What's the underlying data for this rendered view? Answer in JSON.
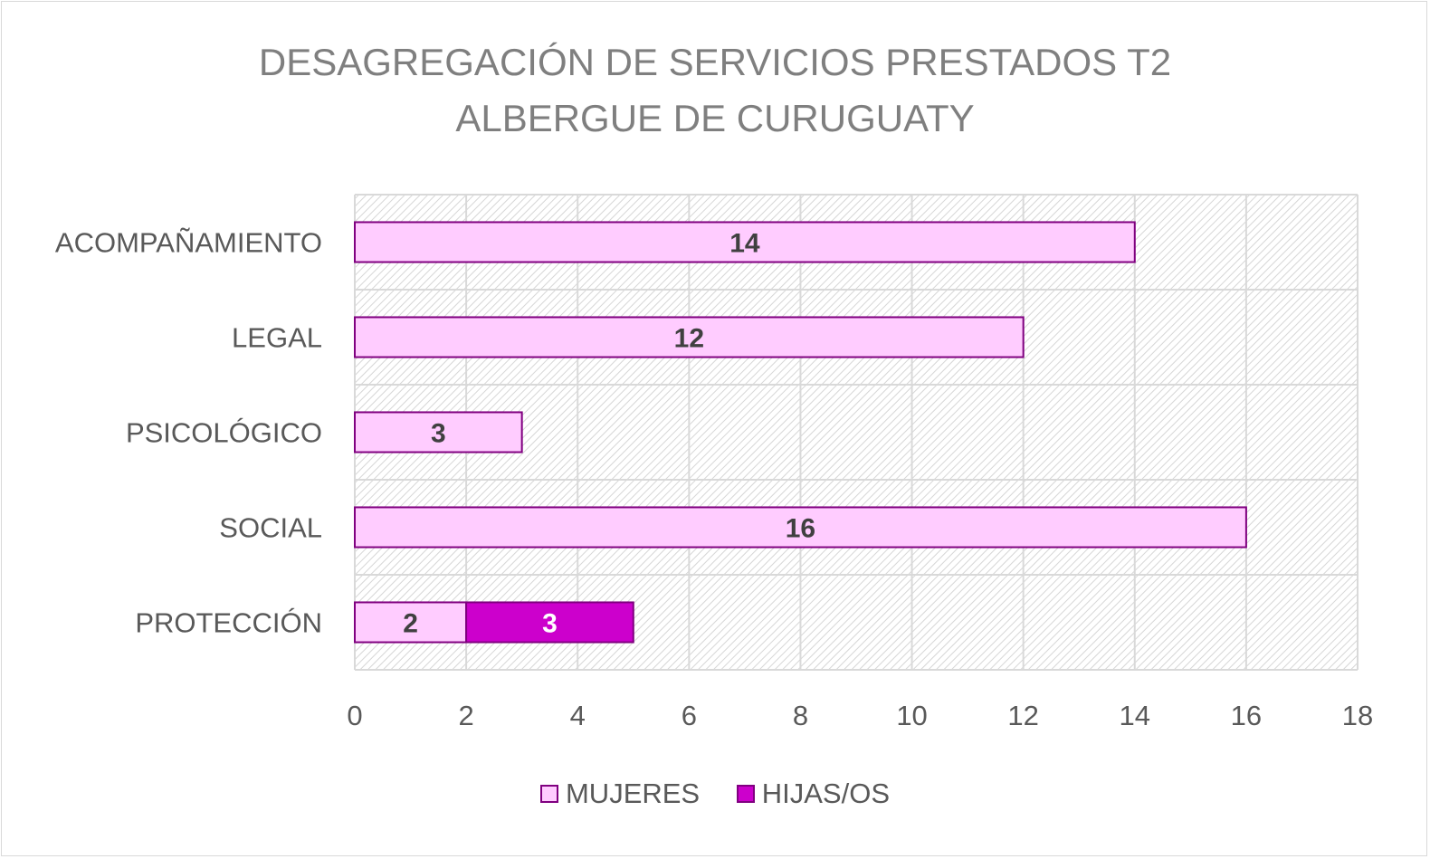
{
  "chart_data": {
    "type": "bar",
    "orientation": "horizontal",
    "stacked": true,
    "title": [
      "DESAGREGACIÓN DE SERVICIOS PRESTADOS T2",
      "ALBERGUE DE CURUGUATY"
    ],
    "categories": [
      "ACOMPAÑAMIENTO",
      "LEGAL",
      "PSICOLÓGICO",
      "SOCIAL",
      "PROTECCIÓN"
    ],
    "series": [
      {
        "name": "MUJERES",
        "values": [
          14,
          12,
          3,
          16,
          2
        ],
        "color": "#ffccff",
        "border": "#800080",
        "label_color": "#404040"
      },
      {
        "name": "HIJAS/OS",
        "values": [
          null,
          null,
          null,
          null,
          3
        ],
        "color": "#cc00cc",
        "border": "#800080",
        "label_color": "#ffffff"
      }
    ],
    "xlim": [
      0,
      18
    ],
    "x_ticks": [
      "0",
      "2",
      "4",
      "6",
      "8",
      "10",
      "12",
      "14",
      "16",
      "18"
    ],
    "grid": true,
    "plot_background": "hatched light gray",
    "legend_position": "bottom"
  }
}
